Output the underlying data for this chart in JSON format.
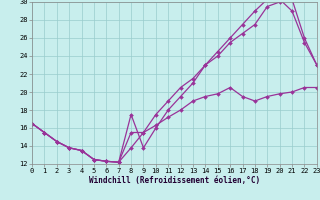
{
  "xlabel": "Windchill (Refroidissement éolien,°C)",
  "xlim": [
    0,
    23
  ],
  "ylim": [
    12,
    30
  ],
  "xticks": [
    0,
    1,
    2,
    3,
    4,
    5,
    6,
    7,
    8,
    9,
    10,
    11,
    12,
    13,
    14,
    15,
    16,
    17,
    18,
    19,
    20,
    21,
    22,
    23
  ],
  "yticks": [
    12,
    14,
    16,
    18,
    20,
    22,
    24,
    26,
    28,
    30
  ],
  "bg_color": "#c8eeed",
  "line_color": "#993399",
  "grid_color": "#99cccc",
  "series1_x": [
    0,
    1,
    2,
    3,
    4,
    5,
    6,
    7,
    8,
    9,
    10,
    11,
    12,
    13,
    14,
    15,
    16,
    17,
    18,
    19,
    20,
    21,
    22,
    23
  ],
  "series1_y": [
    16.5,
    15.5,
    14.5,
    13.8,
    13.5,
    12.5,
    12.3,
    12.2,
    17.5,
    13.8,
    16.0,
    18.0,
    19.5,
    21.0,
    23.0,
    24.0,
    25.5,
    26.5,
    27.5,
    29.5,
    30.0,
    30.3,
    26.0,
    23.0
  ],
  "series2_x": [
    0,
    1,
    2,
    3,
    4,
    5,
    6,
    7,
    8,
    9,
    10,
    11,
    12,
    13,
    14,
    15,
    16,
    17,
    18,
    19,
    20,
    21,
    22,
    23
  ],
  "series2_y": [
    16.5,
    15.5,
    14.5,
    13.8,
    13.5,
    12.5,
    12.3,
    12.2,
    15.5,
    15.5,
    17.5,
    19.0,
    20.5,
    21.5,
    23.0,
    24.5,
    26.0,
    27.5,
    29.0,
    30.3,
    30.3,
    29.0,
    25.5,
    23.0
  ],
  "series3_x": [
    0,
    1,
    2,
    3,
    4,
    5,
    6,
    7,
    8,
    9,
    10,
    11,
    12,
    13,
    14,
    15,
    16,
    17,
    18,
    19,
    20,
    21,
    22,
    23
  ],
  "series3_y": [
    16.5,
    15.5,
    14.5,
    13.8,
    13.5,
    12.5,
    12.3,
    12.2,
    13.8,
    15.5,
    16.3,
    17.2,
    18.0,
    19.0,
    19.5,
    19.8,
    20.5,
    19.5,
    19.0,
    19.5,
    19.8,
    20.0,
    20.5,
    20.5
  ]
}
